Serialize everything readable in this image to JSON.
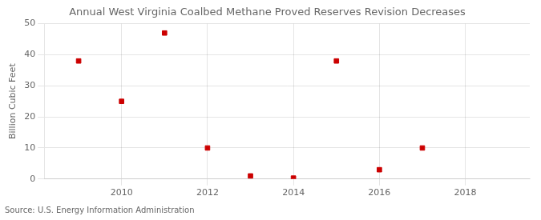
{
  "chart_data": {
    "type": "scatter",
    "title": "Annual West Virginia Coalbed Methane Proved Reserves Revision Decreases",
    "ylabel": "Billion Cubic Feet",
    "source": "Source: U.S. Energy Information Administration",
    "x": [
      2009,
      2010,
      2011,
      2012,
      2013,
      2014,
      2015,
      2016,
      2017
    ],
    "values": [
      38,
      25,
      47,
      10,
      1,
      0.3,
      38,
      3,
      10
    ],
    "color": "#cc0000",
    "marker": "square",
    "xlim": [
      2008.2,
      2019.5
    ],
    "ylim": [
      0,
      50
    ],
    "xticks": [
      2010,
      2012,
      2014,
      2016,
      2018
    ],
    "yticks": [
      0,
      10,
      20,
      30,
      40,
      50
    ],
    "grid": true
  }
}
